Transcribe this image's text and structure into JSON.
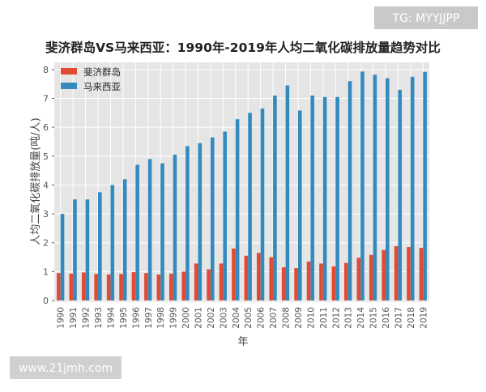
{
  "watermark_top": "TG: MYYJJPP",
  "watermark_bottom": "www.21jmh.com",
  "chart_data": {
    "type": "bar",
    "title": "斐济群岛VS马来西亚：1990年-2019年人均二氧化碳排放量趋势对比",
    "x_label": "年",
    "y_label": "人均二氧化碳排放量(吨/人)",
    "categories": [
      "1990",
      "1991",
      "1992",
      "1993",
      "1994",
      "1995",
      "1996",
      "1997",
      "1998",
      "1999",
      "2000",
      "2001",
      "2002",
      "2003",
      "2004",
      "2005",
      "2006",
      "2007",
      "2008",
      "2009",
      "2010",
      "2011",
      "2012",
      "2013",
      "2014",
      "2015",
      "2016",
      "2017",
      "2018",
      "2019"
    ],
    "series": [
      {
        "name": "斐济群岛",
        "color": "#e24a33",
        "values": [
          0.95,
          0.93,
          0.97,
          0.92,
          0.9,
          0.92,
          0.98,
          0.95,
          0.9,
          0.93,
          1.0,
          1.28,
          1.08,
          1.28,
          1.8,
          1.55,
          1.65,
          1.5,
          1.15,
          1.12,
          1.35,
          1.28,
          1.18,
          1.3,
          1.48,
          1.58,
          1.75,
          1.88,
          1.85,
          1.82
        ]
      },
      {
        "name": "马来西亚",
        "color": "#348abd",
        "values": [
          3.0,
          3.5,
          3.5,
          3.75,
          4.0,
          4.2,
          4.7,
          4.9,
          4.75,
          5.05,
          5.35,
          5.45,
          5.65,
          5.85,
          6.28,
          6.5,
          6.65,
          7.1,
          7.45,
          6.58,
          7.1,
          7.05,
          7.05,
          7.6,
          7.93,
          7.82,
          7.7,
          7.3,
          7.75,
          7.92
        ]
      }
    ],
    "ylim": [
      0,
      8.25
    ],
    "yticks": [
      0,
      1,
      2,
      3,
      4,
      5,
      6,
      7,
      8
    ],
    "grid": true,
    "legend": "upper-left"
  }
}
